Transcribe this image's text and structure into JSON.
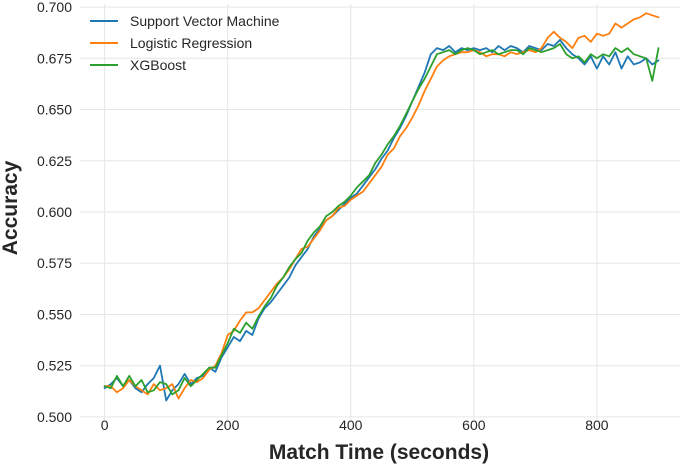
{
  "chart_data": {
    "type": "line",
    "title": "",
    "xlabel": "Match Time (seconds)",
    "ylabel": "Accuracy",
    "xlim": [
      -40,
      935
    ],
    "ylim": [
      0.4985,
      0.7015
    ],
    "xticks": [
      0,
      200,
      400,
      600,
      800
    ],
    "yticks": [
      0.5,
      0.525,
      0.55,
      0.575,
      0.6,
      0.625,
      0.65,
      0.675,
      0.7
    ],
    "xtick_labels": [
      "0",
      "200",
      "400",
      "600",
      "800"
    ],
    "ytick_labels": [
      "0.500",
      "0.525",
      "0.550",
      "0.575",
      "0.600",
      "0.625",
      "0.650",
      "0.675",
      "0.700"
    ],
    "grid": true,
    "legend_position": "top-left",
    "x": [
      0,
      10,
      20,
      30,
      40,
      50,
      60,
      70,
      80,
      90,
      100,
      110,
      120,
      130,
      140,
      150,
      160,
      170,
      180,
      190,
      200,
      210,
      220,
      230,
      240,
      250,
      260,
      270,
      280,
      290,
      300,
      310,
      320,
      330,
      340,
      350,
      360,
      370,
      380,
      390,
      400,
      410,
      420,
      430,
      440,
      450,
      460,
      470,
      480,
      490,
      500,
      510,
      520,
      530,
      540,
      550,
      560,
      570,
      580,
      590,
      600,
      610,
      620,
      630,
      640,
      650,
      660,
      670,
      680,
      690,
      700,
      710,
      720,
      730,
      740,
      750,
      760,
      770,
      780,
      790,
      800,
      810,
      820,
      830,
      840,
      850,
      860,
      870,
      880,
      890,
      900
    ],
    "series": [
      {
        "name": "Support Vector Machine",
        "color": "#1f77b4",
        "values": [
          0.514,
          0.516,
          0.519,
          0.515,
          0.518,
          0.514,
          0.512,
          0.516,
          0.519,
          0.525,
          0.508,
          0.513,
          0.516,
          0.521,
          0.516,
          0.519,
          0.52,
          0.524,
          0.522,
          0.529,
          0.534,
          0.539,
          0.537,
          0.542,
          0.54,
          0.548,
          0.553,
          0.556,
          0.56,
          0.564,
          0.568,
          0.574,
          0.578,
          0.582,
          0.588,
          0.592,
          0.596,
          0.598,
          0.601,
          0.604,
          0.607,
          0.609,
          0.613,
          0.617,
          0.621,
          0.626,
          0.63,
          0.636,
          0.641,
          0.647,
          0.654,
          0.661,
          0.668,
          0.677,
          0.68,
          0.679,
          0.681,
          0.678,
          0.68,
          0.679,
          0.68,
          0.679,
          0.68,
          0.678,
          0.681,
          0.679,
          0.681,
          0.68,
          0.678,
          0.681,
          0.68,
          0.679,
          0.682,
          0.681,
          0.684,
          0.68,
          0.677,
          0.675,
          0.672,
          0.676,
          0.67,
          0.676,
          0.672,
          0.678,
          0.67,
          0.676,
          0.672,
          0.673,
          0.675,
          0.672,
          0.674
        ]
      },
      {
        "name": "Logistic Regression",
        "color": "#ff7f0e",
        "values": [
          0.515,
          0.515,
          0.512,
          0.514,
          0.518,
          0.515,
          0.513,
          0.511,
          0.516,
          0.513,
          0.514,
          0.516,
          0.509,
          0.514,
          0.518,
          0.517,
          0.519,
          0.523,
          0.525,
          0.531,
          0.54,
          0.542,
          0.547,
          0.551,
          0.551,
          0.553,
          0.557,
          0.561,
          0.565,
          0.568,
          0.572,
          0.577,
          0.582,
          0.583,
          0.587,
          0.591,
          0.596,
          0.598,
          0.602,
          0.603,
          0.606,
          0.608,
          0.61,
          0.614,
          0.618,
          0.622,
          0.628,
          0.631,
          0.637,
          0.641,
          0.646,
          0.652,
          0.659,
          0.665,
          0.671,
          0.674,
          0.676,
          0.677,
          0.678,
          0.678,
          0.679,
          0.678,
          0.676,
          0.677,
          0.677,
          0.676,
          0.678,
          0.677,
          0.678,
          0.679,
          0.678,
          0.68,
          0.685,
          0.688,
          0.685,
          0.683,
          0.68,
          0.685,
          0.686,
          0.683,
          0.687,
          0.686,
          0.687,
          0.692,
          0.69,
          0.692,
          0.694,
          0.695,
          0.697,
          0.696,
          0.695
        ]
      },
      {
        "name": "XGBoost",
        "color": "#2ca02c",
        "values": [
          0.515,
          0.514,
          0.52,
          0.515,
          0.52,
          0.515,
          0.518,
          0.512,
          0.513,
          0.517,
          0.516,
          0.511,
          0.513,
          0.519,
          0.515,
          0.518,
          0.521,
          0.524,
          0.524,
          0.53,
          0.536,
          0.543,
          0.541,
          0.546,
          0.543,
          0.549,
          0.554,
          0.558,
          0.564,
          0.568,
          0.573,
          0.577,
          0.58,
          0.586,
          0.59,
          0.593,
          0.598,
          0.6,
          0.603,
          0.605,
          0.608,
          0.612,
          0.615,
          0.618,
          0.624,
          0.628,
          0.633,
          0.637,
          0.642,
          0.648,
          0.654,
          0.66,
          0.665,
          0.671,
          0.677,
          0.678,
          0.679,
          0.677,
          0.679,
          0.68,
          0.679,
          0.677,
          0.678,
          0.679,
          0.677,
          0.678,
          0.679,
          0.679,
          0.677,
          0.68,
          0.679,
          0.678,
          0.679,
          0.68,
          0.682,
          0.677,
          0.675,
          0.676,
          0.673,
          0.677,
          0.675,
          0.677,
          0.676,
          0.68,
          0.678,
          0.68,
          0.677,
          0.676,
          0.675,
          0.664,
          0.68
        ]
      }
    ]
  }
}
